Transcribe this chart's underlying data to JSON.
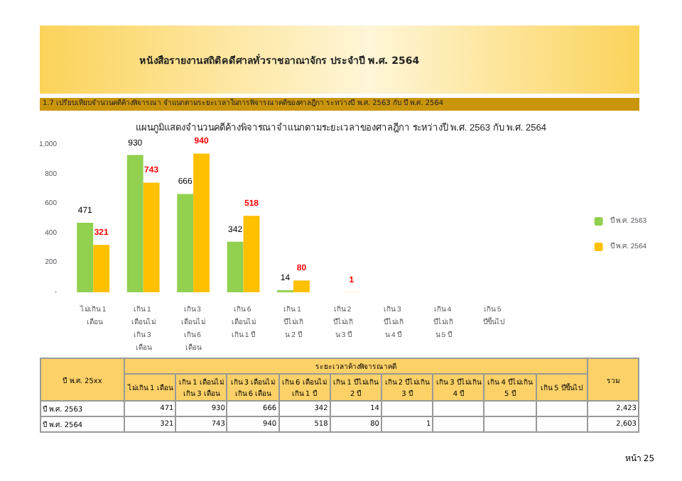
{
  "chart_data": {
    "type": "bar",
    "title": "แผนภูมิแสดงจำนวนคดีค้างพิจารณาจำแนกตามระยะเวลาของศาลฎีกา ระหว่างปี พ.ศ. 2563 กับ พ.ศ. 2564",
    "subtitle": "หนังสือรายงานสถิติคดีศาลทั่วราชอาณาจักร ประจำปี พ.ศ. 2564",
    "annotations": [
      "1.7 เปรียบเทียบจำนวนคดีค้างพิจารณา จำแนกตามระยะเวลาในการพิจารณาคดีของศาลฎีกา ระหว่างปี พ.ศ. 2563 กับ ปี พ.ศ. 2564",
      "ปี พ.ศ. 25xx",
      "ระยะเวลาค้างพิจารณาคดี",
      "รวม",
      "2,423",
      "2,603",
      "หน้า 25"
    ],
    "categories": [
      "ไม่เกิน 1 เดือน",
      "เกิน 1 เดือนไม่เกิน 3 เดือน",
      "เกิน 3 เดือนไม่เกิน 6 เดือน",
      "เกิน 6 เดือนไม่เกิน 1 ปี",
      "เกิน 1 ปีไม่เกิน 2 ปี",
      "เกิน 2 ปีไม่เกิน 3 ปี",
      "เกิน 3 ปีไม่เกิน 4 ปี",
      "เกิน 4 ปีไม่เกิน 5 ปี",
      "เกิน 5 ปีขึ้นไป"
    ],
    "series": [
      {
        "name": "ปี พ.ศ. 2563",
        "color": "#92d050",
        "values": [
          471,
          930,
          666,
          342,
          14,
          null,
          null,
          null,
          null
        ],
        "value_labels": [
          "471",
          "930",
          "666",
          "342",
          "14",
          null,
          null,
          null,
          null
        ]
      },
      {
        "name": "ปี พ.ศ. 2564",
        "color": "#ffc000",
        "values": [
          321,
          743,
          940,
          518,
          80,
          1,
          null,
          null,
          null
        ],
        "value_labels": [
          "321",
          "743",
          "940",
          "518",
          "80",
          "1",
          null,
          null,
          null
        ]
      }
    ],
    "ylim": [
      0,
      1000
    ],
    "yticks": [
      {
        "value": 0,
        "label": "-"
      },
      200,
      400,
      600,
      800,
      {
        "value": 1000,
        "label": "1,000"
      }
    ],
    "legend": "right",
    "grid": false
  }
}
